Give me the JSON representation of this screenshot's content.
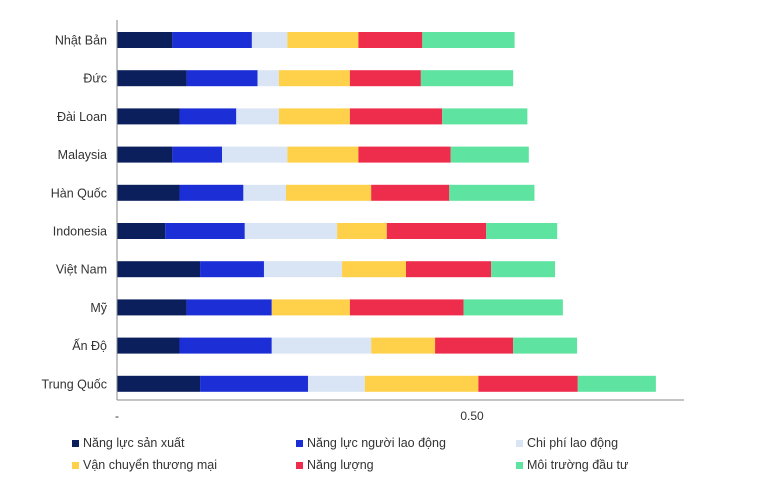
{
  "chart_data": {
    "type": "bar",
    "orientation": "horizontal",
    "stacked": true,
    "title": "",
    "xlabel": "",
    "ylabel": "",
    "xlim": [
      0,
      0.8
    ],
    "x_ticks": [
      {
        "value": 0,
        "label": "-"
      },
      {
        "value": 0.5,
        "label": "0.50"
      }
    ],
    "categories": [
      "Nhật Bản",
      "Đức",
      "Đài Loan",
      "Malaysia",
      "Hàn Quốc",
      "Indonesia",
      "Việt Nam",
      "Mỹ",
      "Ấn Độ",
      "Trung Quốc"
    ],
    "series": [
      {
        "name": "Năng lực sản xuất",
        "color": "#0a1f5c",
        "values": [
          0.078,
          0.098,
          0.088,
          0.078,
          0.088,
          0.068,
          0.117,
          0.098,
          0.088,
          0.117
        ]
      },
      {
        "name": "Năng lực người lao động",
        "color": "#1c2fd6",
        "values": [
          0.112,
          0.1,
          0.08,
          0.07,
          0.09,
          0.112,
          0.09,
          0.12,
          0.13,
          0.152
        ]
      },
      {
        "name": "Chi phí lao động",
        "color": "#d9e4f5",
        "values": [
          0.05,
          0.03,
          0.06,
          0.092,
          0.06,
          0.13,
          0.11,
          0.0,
          0.14,
          0.08
        ]
      },
      {
        "name": "Vận chuyển thương mại",
        "color": "#ffd04a",
        "values": [
          0.1,
          0.1,
          0.1,
          0.1,
          0.12,
          0.07,
          0.09,
          0.11,
          0.09,
          0.16
        ]
      },
      {
        "name": "Năng lượng",
        "color": "#ee2c4c",
        "values": [
          0.09,
          0.1,
          0.13,
          0.13,
          0.11,
          0.14,
          0.12,
          0.16,
          0.11,
          0.14
        ]
      },
      {
        "name": "Môi trường đầu tư",
        "color": "#5fe3a0",
        "values": [
          0.13,
          0.13,
          0.12,
          0.11,
          0.12,
          0.1,
          0.09,
          0.14,
          0.09,
          0.11
        ]
      }
    ],
    "legend_position": "bottom",
    "grid": false
  }
}
